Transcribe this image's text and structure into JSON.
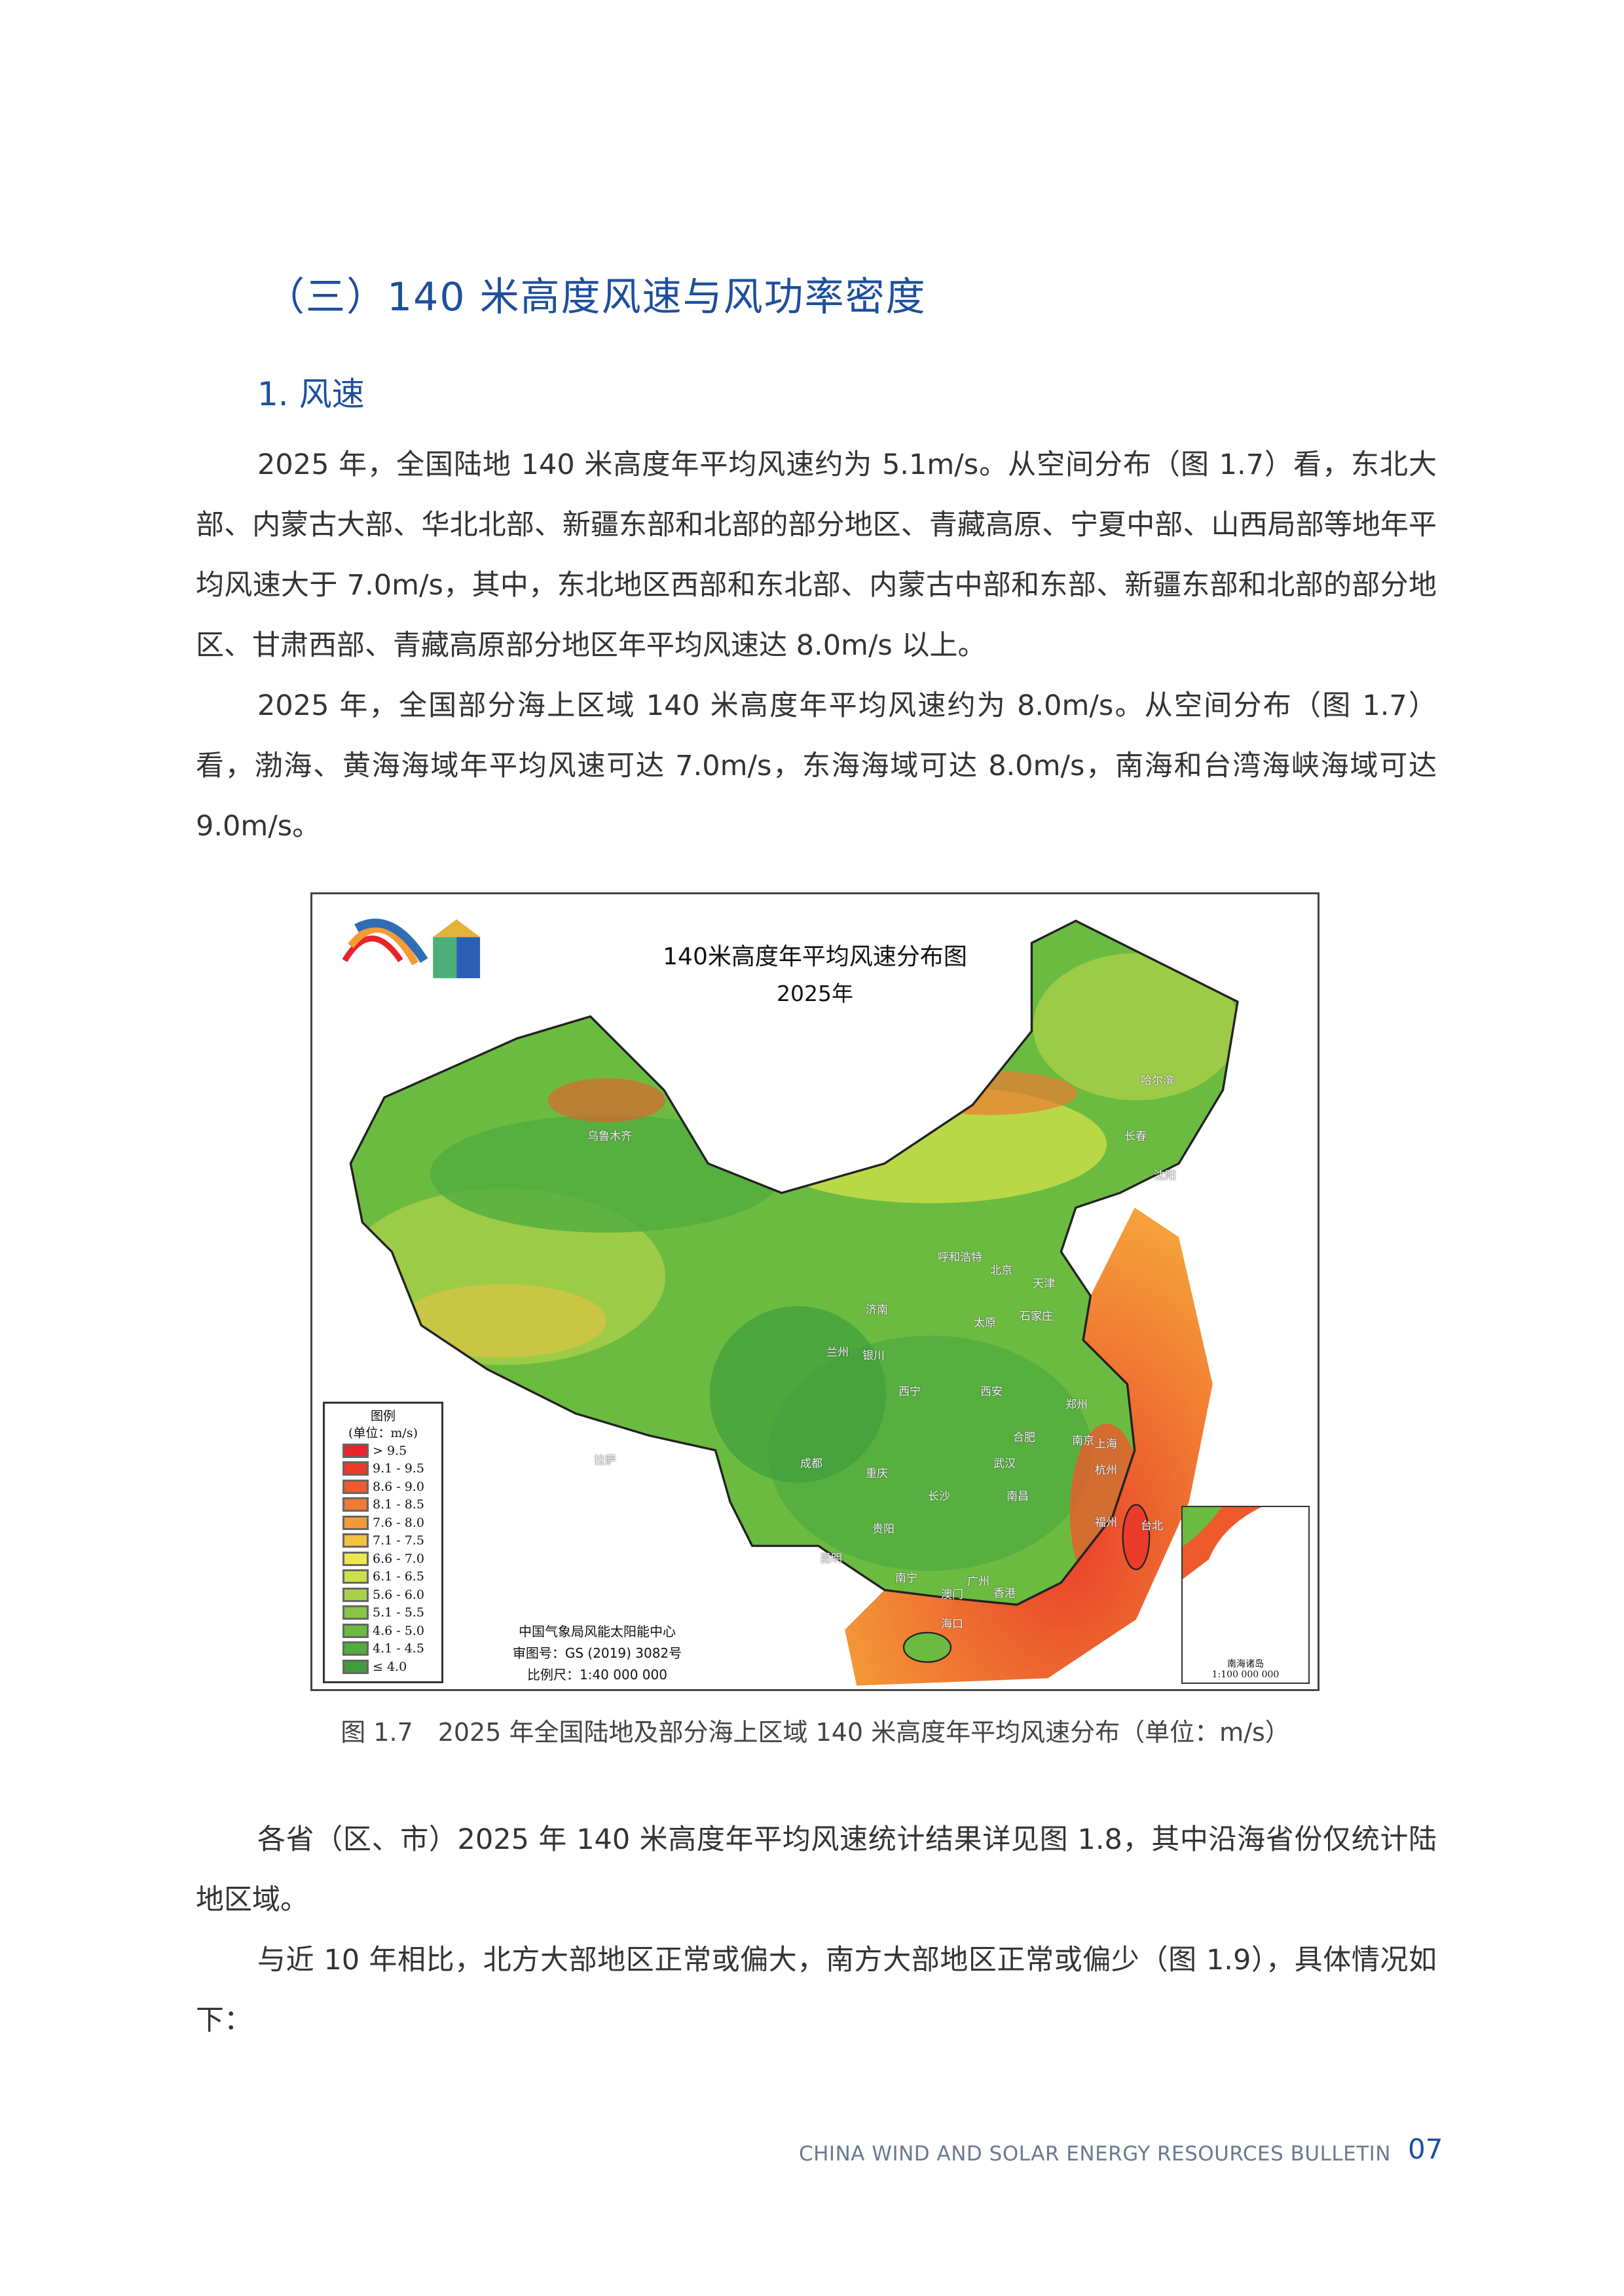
{
  "section_heading": "（三）140 米高度风速与风功率密度",
  "subheading": "1. 风速",
  "paragraphs": [
    "2025 年，全国陆地 140 米高度年平均风速约为 5.1m/s。从空间分布（图 1.7）看，东北大部、内蒙古大部、华北北部、新疆东部和北部的部分地区、青藏高原、宁夏中部、山西局部等地年平均风速大于 7.0m/s，其中，东北地区西部和东北部、内蒙古中部和东部、新疆东部和北部的部分地区、甘肃西部、青藏高原部分地区年平均风速达 8.0m/s 以上。",
    "2025 年，全国部分海上区域 140 米高度年平均风速约为 8.0m/s。从空间分布（图 1.7）看，渤海、黄海海域年平均风速可达 7.0m/s，东海海域可达 8.0m/s，南海和台湾海峡海域可达 9.0m/s。",
    "各省（区、市）2025 年 140 米高度年平均风速统计结果详见图 1.8，其中沿海省份仅统计陆地区域。",
    "与近 10 年相比，北方大部地区正常或偏大，南方大部地区正常或偏少（图 1.9），具体情况如下："
  ],
  "map": {
    "title": "140米高度年平均风速分布图",
    "year": "2025年",
    "legend_title": "图例",
    "legend_unit": "(单位：m/s)",
    "legend": [
      {
        "label": "> 9.5",
        "color": "#e8232a"
      },
      {
        "label": "9.1 - 9.5",
        "color": "#ea3b2b"
      },
      {
        "label": "8.6 - 9.0",
        "color": "#ee5a2c"
      },
      {
        "label": "8.1 - 8.5",
        "color": "#f07a32"
      },
      {
        "label": "7.6 - 8.0",
        "color": "#f59b36"
      },
      {
        "label": "7.1 - 7.5",
        "color": "#f4c241"
      },
      {
        "label": "6.6 - 7.0",
        "color": "#ece84c"
      },
      {
        "label": "6.1 - 6.5",
        "color": "#cde049"
      },
      {
        "label": "5.6 - 6.0",
        "color": "#a9d048"
      },
      {
        "label": "5.1 - 5.5",
        "color": "#89c545"
      },
      {
        "label": "4.6 - 5.0",
        "color": "#6cbb41"
      },
      {
        "label": "4.1 - 4.5",
        "color": "#52ad40"
      },
      {
        "label": "≤ 4.0",
        "color": "#3f9e3c"
      }
    ],
    "credit_org": "中国气象局风能太阳能中心",
    "credit_review": "审图号：GS (2019) 3082号",
    "credit_scale": "比例尺：1:40  000  000",
    "inset_label": "南海诸岛",
    "inset_scale": "1:100 000 000",
    "cities": [
      "乌鲁木齐",
      "拉萨",
      "哈尔滨",
      "长春",
      "沈阳",
      "呼和浩特",
      "北京",
      "天津",
      "石家庄",
      "太原",
      "济南",
      "银川",
      "兰州",
      "西宁",
      "西安",
      "郑州",
      "南京",
      "合肥",
      "上海",
      "杭州",
      "武汉",
      "成都",
      "重庆",
      "长沙",
      "南昌",
      "福州",
      "台北",
      "贵阳",
      "昆明",
      "南宁",
      "广州",
      "香港",
      "澳门",
      "海口"
    ]
  },
  "caption": "图 1.7　2025 年全国陆地及部分海上区域 140 米高度年平均风速分布（单位：m/s）",
  "footer": {
    "text": "CHINA WIND AND SOLAR ENERGY RESOURCES BULLETIN",
    "page": "07"
  }
}
